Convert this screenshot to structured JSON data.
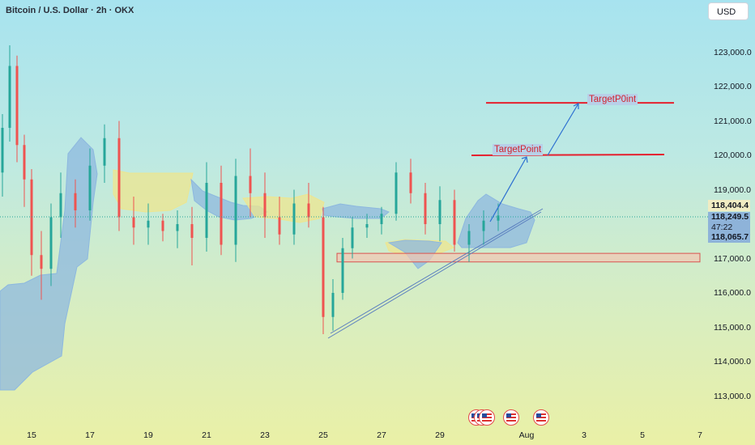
{
  "header": {
    "title": "Bitcoin / U.S. Dollar · 2h · OKX"
  },
  "currency_button": "USD",
  "price_axis": {
    "labels": [
      "123,000.0",
      "122,000.0",
      "121,000.0",
      "120,000.0",
      "119,000.0",
      "117,000.0",
      "116,000.0",
      "115,000.0",
      "114,000.0",
      "113,000.0"
    ],
    "values": [
      123000,
      122000,
      121000,
      120000,
      119000,
      117000,
      116000,
      115000,
      114000,
      113000
    ]
  },
  "time_axis": {
    "labels": [
      "15",
      "17",
      "19",
      "21",
      "23",
      "25",
      "27",
      "29",
      "Aug",
      "3",
      "5",
      "7"
    ]
  },
  "price_tags": {
    "resistance": "118,404.4",
    "last_price": "118,249.5",
    "countdown": "47:22",
    "entry": "118,065.7"
  },
  "annotations": {
    "target1": "TargetPoint",
    "target2": "TargetP0int"
  },
  "colors": {
    "up_candle": "#26a69a",
    "down_candle": "#ef5350",
    "target_line": "#e5202e",
    "cloud_blue": "#8db8df",
    "cloud_yellow": "#ede68f",
    "demand_zone": "#f2c6b2"
  },
  "icons": [
    "us-flag-icon",
    "us-flag-icon",
    "us-flag-icon",
    "us-flag-icon",
    "us-flag-icon"
  ],
  "chart_data": {
    "type": "candlestick",
    "y_range": [
      112500,
      124250
    ],
    "x_range": [
      "2025-07-14",
      "2025-08-07"
    ],
    "targets": [
      120000,
      121550
    ],
    "support_zone": [
      116900,
      117150
    ],
    "last_price": 118249.5,
    "resistance_price": 118404.4,
    "entry_price": 118065.7,
    "candles": [
      {
        "t": "2025-07-14",
        "o": 119500,
        "h": 121200,
        "l": 118800,
        "c": 120800
      },
      {
        "t": "2025-07-14T06",
        "o": 120800,
        "h": 123200,
        "l": 120400,
        "c": 122600
      },
      {
        "t": "2025-07-14T12",
        "o": 122600,
        "h": 122900,
        "l": 119800,
        "c": 120300
      },
      {
        "t": "2025-07-14T18",
        "o": 120300,
        "h": 120600,
        "l": 118500,
        "c": 119300
      },
      {
        "t": "2025-07-15",
        "o": 119300,
        "h": 119600,
        "l": 116500,
        "c": 117100
      },
      {
        "t": "2025-07-15T08",
        "o": 117100,
        "h": 117800,
        "l": 115800,
        "c": 116700
      },
      {
        "t": "2025-07-15T16",
        "o": 116700,
        "h": 118600,
        "l": 116200,
        "c": 118200
      },
      {
        "t": "2025-07-16",
        "o": 118200,
        "h": 119500,
        "l": 117600,
        "c": 118900
      },
      {
        "t": "2025-07-16T12",
        "o": 118900,
        "h": 119300,
        "l": 117900,
        "c": 118400
      },
      {
        "t": "2025-07-17",
        "o": 118400,
        "h": 120200,
        "l": 118100,
        "c": 119700
      },
      {
        "t": "2025-07-17T12",
        "o": 119700,
        "h": 120900,
        "l": 119200,
        "c": 120500
      },
      {
        "t": "2025-07-18",
        "o": 120500,
        "h": 121000,
        "l": 117800,
        "c": 118200
      },
      {
        "t": "2025-07-18T12",
        "o": 118200,
        "h": 118800,
        "l": 117400,
        "c": 117900
      },
      {
        "t": "2025-07-19",
        "o": 117900,
        "h": 118600,
        "l": 117400,
        "c": 118100
      },
      {
        "t": "2025-07-19T12",
        "o": 118100,
        "h": 118300,
        "l": 117500,
        "c": 117800
      },
      {
        "t": "2025-07-20",
        "o": 117800,
        "h": 118400,
        "l": 117300,
        "c": 118000
      },
      {
        "t": "2025-07-20T12",
        "o": 118000,
        "h": 118500,
        "l": 116800,
        "c": 117600
      },
      {
        "t": "2025-07-21",
        "o": 117600,
        "h": 119800,
        "l": 117200,
        "c": 119200
      },
      {
        "t": "2025-07-21T12",
        "o": 119200,
        "h": 119700,
        "l": 117100,
        "c": 117400
      },
      {
        "t": "2025-07-22",
        "o": 117400,
        "h": 119900,
        "l": 116900,
        "c": 119400
      },
      {
        "t": "2025-07-22T12",
        "o": 119400,
        "h": 120200,
        "l": 118200,
        "c": 118900
      },
      {
        "t": "2025-07-23",
        "o": 118900,
        "h": 119500,
        "l": 117600,
        "c": 118200
      },
      {
        "t": "2025-07-23T12",
        "o": 118200,
        "h": 118800,
        "l": 117400,
        "c": 117700
      },
      {
        "t": "2025-07-24",
        "o": 117700,
        "h": 119000,
        "l": 117400,
        "c": 118600
      },
      {
        "t": "2025-07-24T12",
        "o": 118600,
        "h": 119200,
        "l": 117900,
        "c": 118200
      },
      {
        "t": "2025-07-25",
        "o": 118200,
        "h": 118500,
        "l": 114800,
        "c": 115300
      },
      {
        "t": "2025-07-25T08",
        "o": 115300,
        "h": 116400,
        "l": 114900,
        "c": 116000
      },
      {
        "t": "2025-07-25T16",
        "o": 116000,
        "h": 117600,
        "l": 115800,
        "c": 117300
      },
      {
        "t": "2025-07-26",
        "o": 117300,
        "h": 118200,
        "l": 117000,
        "c": 117900
      },
      {
        "t": "2025-07-26T12",
        "o": 117900,
        "h": 118300,
        "l": 117600,
        "c": 118000
      },
      {
        "t": "2025-07-27",
        "o": 118000,
        "h": 118500,
        "l": 117700,
        "c": 118300
      },
      {
        "t": "2025-07-27T12",
        "o": 118300,
        "h": 119800,
        "l": 118100,
        "c": 119500
      },
      {
        "t": "2025-07-28",
        "o": 119500,
        "h": 119900,
        "l": 118600,
        "c": 118900
      },
      {
        "t": "2025-07-28T12",
        "o": 118900,
        "h": 119200,
        "l": 117700,
        "c": 118000
      },
      {
        "t": "2025-07-29",
        "o": 118000,
        "h": 119100,
        "l": 117500,
        "c": 118700
      },
      {
        "t": "2025-07-29T12",
        "o": 118700,
        "h": 119000,
        "l": 117200,
        "c": 117400
      },
      {
        "t": "2025-07-30",
        "o": 117400,
        "h": 118000,
        "l": 116900,
        "c": 117800
      },
      {
        "t": "2025-07-30T12",
        "o": 117800,
        "h": 118400,
        "l": 117400,
        "c": 118100
      },
      {
        "t": "2025-07-31",
        "o": 118100,
        "h": 118600,
        "l": 117800,
        "c": 118249.5
      }
    ]
  }
}
